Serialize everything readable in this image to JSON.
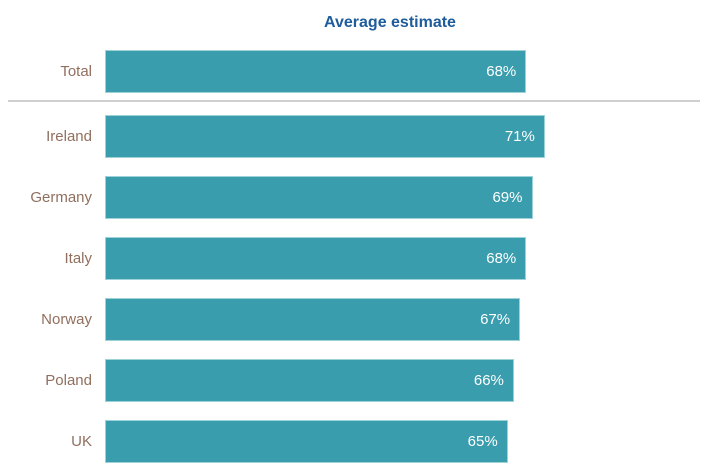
{
  "chart_data": {
    "type": "bar",
    "orientation": "horizontal",
    "title": "Average estimate",
    "categories": [
      "Total",
      "Ireland",
      "Germany",
      "Italy",
      "Norway",
      "Poland",
      "UK"
    ],
    "values": [
      68,
      71,
      69,
      68,
      67,
      66,
      65
    ],
    "value_labels": [
      "68%",
      "71%",
      "69%",
      "68%",
      "67%",
      "66%",
      "65%"
    ],
    "unit": "%",
    "xlim": [
      0,
      92
    ],
    "grid": false,
    "legend": false,
    "divider_after_category": "Total",
    "colors": {
      "bar": "#3A9DAD",
      "bar_border": "#9ED2D9",
      "title": "#1E5C9B",
      "category_label": "#916F5E",
      "value_label": "#FFFFFF",
      "divider": "#CFCFCF"
    }
  }
}
